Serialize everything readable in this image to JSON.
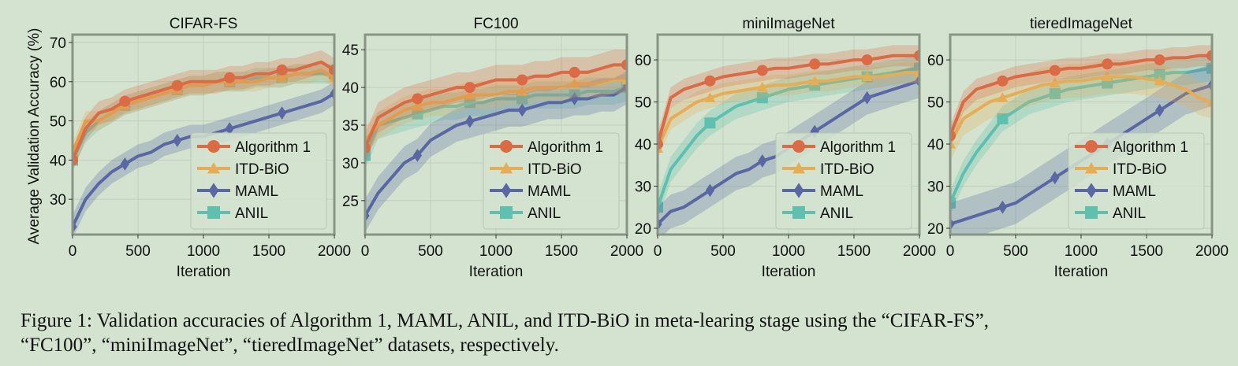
{
  "figure": {
    "ylabel": "Average Validation Accuracy (%)",
    "xlabel": "Iteration"
  },
  "legend_labels": [
    "Algorithm 1",
    "ITD-BiO",
    "MAML",
    "ANIL"
  ],
  "colors": {
    "Algorithm 1": "#db6a45",
    "ITD-BiO": "#e6ad55",
    "MAML": "#5b67a4",
    "ANIL": "#5fc0b0",
    "background": "#d3e3cf",
    "spine": "#8a9486",
    "grid": "#c0cfbc"
  },
  "chart_data": [
    {
      "type": "line",
      "title": "CIFAR-FS",
      "xlabel": "Iteration",
      "ylabel": "Average Validation Accuracy (%)",
      "xlim": [
        0,
        2000
      ],
      "ylim": [
        21,
        72
      ],
      "xticks": [
        0,
        500,
        1000,
        1500,
        2000
      ],
      "yticks": [
        30,
        40,
        50,
        60,
        70
      ],
      "grid": true,
      "legend": "lower-right",
      "x": [
        0,
        100,
        200,
        300,
        400,
        500,
        600,
        700,
        800,
        900,
        1000,
        1100,
        1200,
        1300,
        1400,
        1500,
        1600,
        1700,
        1800,
        1900,
        2000
      ],
      "series": [
        {
          "name": "Algorithm 1",
          "values": [
            40,
            48,
            52,
            53,
            55,
            56,
            57,
            58,
            59,
            60,
            60,
            60,
            61,
            61,
            62,
            62,
            63,
            63,
            64,
            65,
            63
          ],
          "band": 3
        },
        {
          "name": "ITD-BiO",
          "values": [
            42,
            50,
            50,
            52,
            54,
            55,
            56,
            57,
            58,
            59,
            59,
            60,
            60,
            60,
            60,
            61,
            61,
            62,
            62,
            63,
            61
          ],
          "band": 2.5
        },
        {
          "name": "MAML",
          "values": [
            23,
            30,
            34,
            37,
            39,
            41,
            42,
            44,
            45,
            46,
            46,
            47,
            48,
            49,
            50,
            51,
            52,
            53,
            54,
            55,
            57
          ],
          "band": 3
        },
        {
          "name": "ANIL",
          "values": [
            40,
            47,
            50,
            52,
            54,
            55,
            56,
            57,
            58,
            59,
            59,
            60,
            60,
            60,
            61,
            61,
            61,
            62,
            62,
            62,
            62
          ],
          "band": 2.5
        }
      ]
    },
    {
      "type": "line",
      "title": "FC100",
      "xlabel": "Iteration",
      "xlim": [
        0,
        2000
      ],
      "ylim": [
        20.5,
        47
      ],
      "xticks": [
        0,
        500,
        1000,
        1500,
        2000
      ],
      "yticks": [
        25,
        30,
        35,
        40,
        45
      ],
      "grid": true,
      "legend": "lower-right",
      "x": [
        0,
        100,
        200,
        300,
        400,
        500,
        600,
        700,
        800,
        900,
        1000,
        1100,
        1200,
        1300,
        1400,
        1500,
        1600,
        1700,
        1800,
        1900,
        2000
      ],
      "series": [
        {
          "name": "Algorithm 1",
          "values": [
            32,
            36,
            37,
            38,
            38.5,
            39,
            39.5,
            40,
            40,
            40.5,
            41,
            41,
            41,
            41.5,
            41.5,
            42,
            42,
            42,
            42.5,
            43,
            43
          ],
          "band": 2
        },
        {
          "name": "ITD-BiO",
          "values": [
            33,
            35,
            36,
            37,
            37.5,
            38,
            38,
            38.5,
            39,
            39,
            39,
            39.5,
            39.5,
            40,
            40,
            40,
            40.5,
            40.5,
            40.5,
            41,
            41
          ],
          "band": 1.8
        },
        {
          "name": "MAML",
          "values": [
            23,
            26,
            28,
            30,
            31,
            33,
            34,
            35,
            35.5,
            36,
            36.5,
            37,
            37,
            37.5,
            38,
            38,
            38.5,
            38.5,
            39,
            39,
            40
          ],
          "band": 2.2
        },
        {
          "name": "ANIL",
          "values": [
            31,
            35,
            35.5,
            36,
            36.5,
            37,
            37.5,
            37.5,
            38,
            38,
            38.5,
            38.5,
            38.5,
            39,
            39,
            39,
            39,
            39.5,
            39.5,
            39.5,
            40
          ],
          "band": 1.8
        }
      ]
    },
    {
      "type": "line",
      "title": "miniImageNet",
      "xlabel": "Iteration",
      "xlim": [
        0,
        2000
      ],
      "ylim": [
        18.5,
        66
      ],
      "xticks": [
        0,
        500,
        1000,
        1500,
        2000
      ],
      "yticks": [
        20,
        30,
        40,
        50,
        60
      ],
      "grid": true,
      "legend": "lower-right",
      "x": [
        0,
        100,
        200,
        300,
        400,
        500,
        600,
        700,
        800,
        900,
        1000,
        1100,
        1200,
        1300,
        1400,
        1500,
        1600,
        1700,
        1800,
        1900,
        2000
      ],
      "series": [
        {
          "name": "Algorithm 1",
          "values": [
            40,
            51,
            53,
            54,
            55,
            56,
            56.5,
            57,
            57.5,
            58,
            58,
            58.5,
            59,
            59,
            59.5,
            60,
            60,
            60.5,
            61,
            61,
            61
          ],
          "band": 2.5
        },
        {
          "name": "ITD-BiO",
          "values": [
            39,
            46,
            48,
            50,
            51,
            52,
            52.5,
            53,
            53.5,
            54,
            54,
            54.5,
            55,
            55,
            55.5,
            56,
            56,
            56,
            56.5,
            57,
            57
          ],
          "band": 2.5
        },
        {
          "name": "MAML",
          "values": [
            21,
            24,
            25,
            27,
            29,
            31,
            33,
            34,
            36,
            37,
            39,
            41,
            43,
            45,
            47,
            49,
            51,
            52,
            53,
            54,
            55
          ],
          "band": 4
        },
        {
          "name": "ANIL",
          "values": [
            25,
            34,
            38,
            42,
            45,
            47,
            49,
            50,
            51,
            52,
            53,
            53.5,
            54,
            54.5,
            55,
            55.5,
            56,
            56.5,
            57,
            57.5,
            58
          ],
          "band": 3
        }
      ]
    },
    {
      "type": "line",
      "title": "tieredImageNet",
      "xlabel": "Iteration",
      "xlim": [
        0,
        2000
      ],
      "ylim": [
        18.5,
        66
      ],
      "xticks": [
        0,
        500,
        1000,
        1500,
        2000
      ],
      "yticks": [
        20,
        30,
        40,
        50,
        60
      ],
      "grid": true,
      "legend": "lower-right",
      "x": [
        0,
        100,
        200,
        300,
        400,
        500,
        600,
        700,
        800,
        900,
        1000,
        1100,
        1200,
        1300,
        1400,
        1500,
        1600,
        1700,
        1800,
        1900,
        2000
      ],
      "series": [
        {
          "name": "Algorithm 1",
          "values": [
            42,
            50,
            53,
            54,
            55,
            56,
            56.5,
            57,
            57.5,
            58,
            58,
            58.5,
            59,
            59,
            59.5,
            60,
            60,
            60.5,
            60.5,
            61,
            61
          ],
          "band": 2.5
        },
        {
          "name": "ITD-BiO",
          "values": [
            40,
            46,
            48,
            50,
            51,
            52,
            53,
            54,
            54.5,
            55,
            55,
            55.5,
            56,
            56,
            56,
            55.5,
            55,
            54,
            53,
            51,
            50
          ],
          "band": 4
        },
        {
          "name": "MAML",
          "values": [
            21,
            22,
            23,
            24,
            25,
            26,
            28,
            30,
            32,
            34,
            36,
            38,
            40,
            42,
            44,
            46,
            48,
            50,
            52,
            53,
            54
          ],
          "band": 5
        },
        {
          "name": "ANIL",
          "values": [
            26,
            33,
            38,
            42,
            46,
            48,
            50,
            51,
            52,
            53,
            53.5,
            54,
            54.5,
            55,
            55.5,
            56,
            56.5,
            57,
            57,
            57.5,
            58
          ],
          "band": 3
        }
      ]
    }
  ],
  "caption": {
    "line1": "Figure 1: Validation accuracies of Algorithm 1, MAML, ANIL, and ITD-BiO in meta-learing stage using the “CIFAR-FS”,",
    "line2": "“FC100”, “miniImageNet”, “tieredImageNet” datasets, respectively."
  }
}
